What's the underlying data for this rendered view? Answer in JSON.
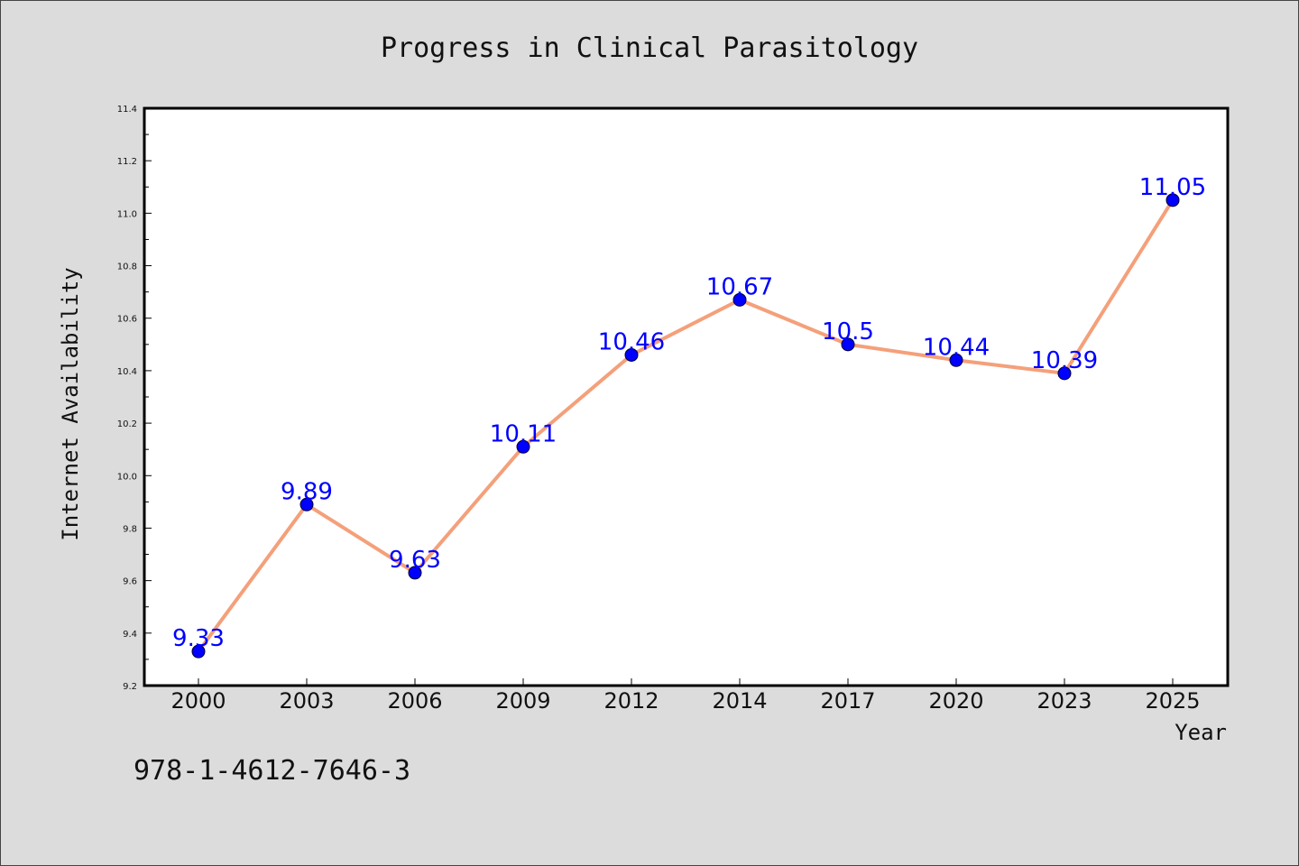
{
  "chart_data": {
    "type": "line",
    "title": "Progress in Clinical Parasitology",
    "xlabel": "Year",
    "ylabel": "Internet Availability",
    "categories": [
      "2000",
      "2003",
      "2006",
      "2009",
      "2012",
      "2014",
      "2017",
      "2020",
      "2023",
      "2025"
    ],
    "series": [
      {
        "values": [
          9.33,
          9.89,
          9.63,
          10.11,
          10.46,
          10.67,
          10.5,
          10.44,
          10.39,
          11.05
        ],
        "data_labels": [
          "9.33",
          "9.89",
          "9.63",
          "10.11",
          "10.46",
          "10.67",
          "10.5",
          "10.44",
          "10.39",
          "11.05"
        ]
      }
    ],
    "ylim": [
      9.2,
      11.4
    ],
    "yticks": [
      "9.2",
      "9.4",
      "9.6",
      "9.8",
      "10.0",
      "10.2",
      "10.4",
      "10.6",
      "10.8",
      "11.0",
      "11.2",
      "11.4"
    ],
    "grid": false,
    "legend": "none"
  },
  "footer_text": "978-1-4612-7646-3",
  "colors": {
    "background": "#dcdcdc",
    "plot_area": "#ffffff",
    "line": "#f4a07a",
    "marker": "#0000ff",
    "data_label": "#0000ff"
  }
}
